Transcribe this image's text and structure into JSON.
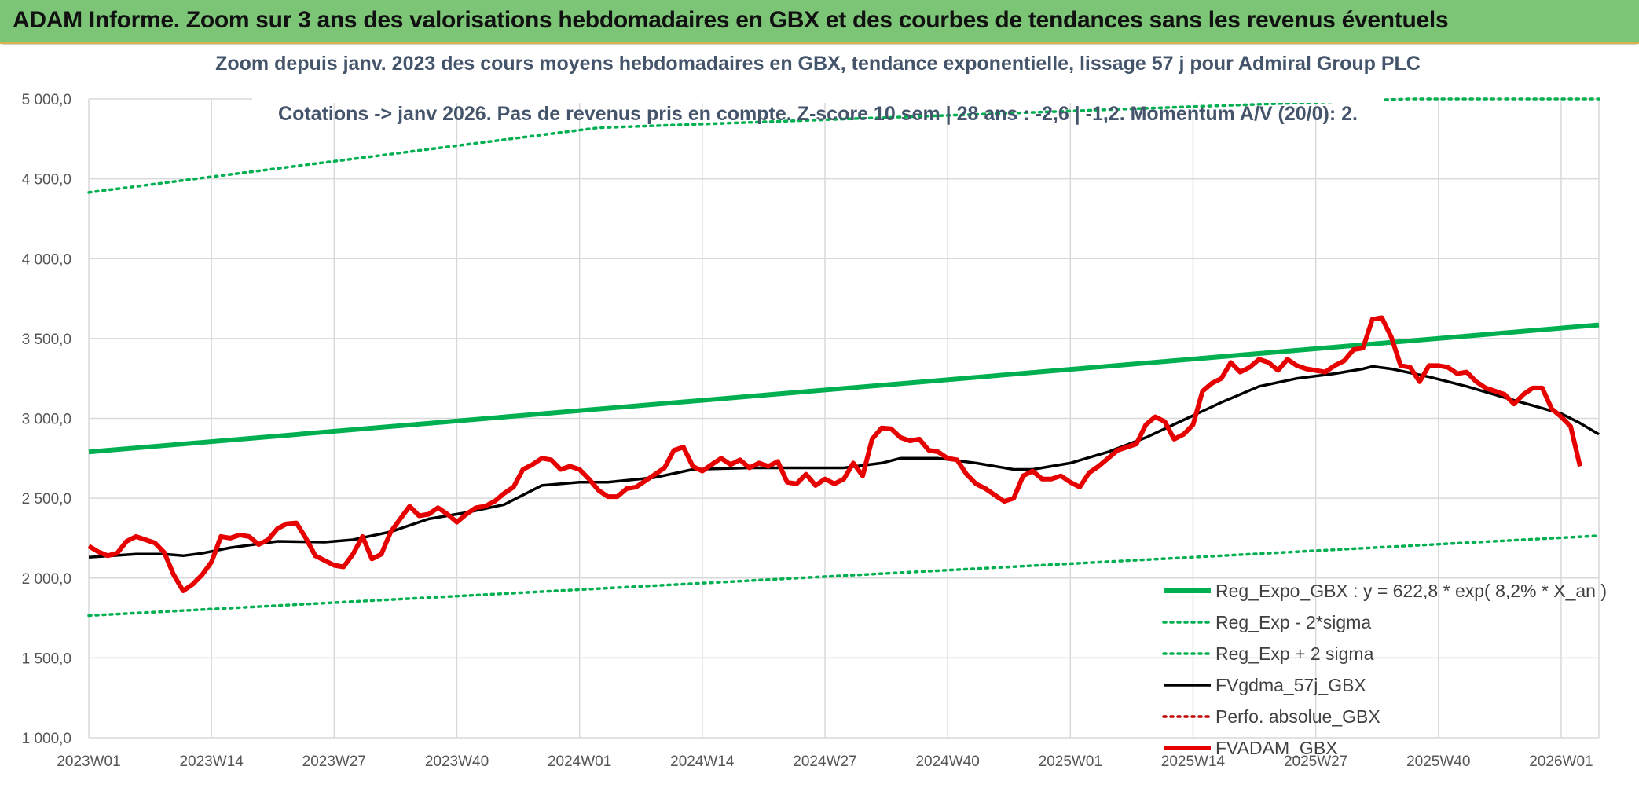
{
  "page": {
    "banner_title": "ADAM Informe. Zoom sur 3 ans des valorisations hebdomadaires en GBX et des courbes de tendances sans les revenus éventuels"
  },
  "chart_data": {
    "type": "line",
    "title": "Zoom depuis janv. 2023 des cours moyens hebdomadaires en GBX, tendance exponentielle, lissage 57 j pour Admiral Group PLC",
    "subtitle": "Cotations -> janv 2026. Pas de revenus pris en compte. Z-score 10 sem | 28 ans : -2,6 | -1,2. Momentum A/V (20/0): 2.",
    "xlabel": "",
    "ylabel": "",
    "ylim": [
      1000,
      5000
    ],
    "y_ticks": [
      1000,
      1500,
      2000,
      2500,
      3000,
      3500,
      4000,
      4500,
      5000
    ],
    "y_tick_labels": [
      "1 000,0",
      "1 500,0",
      "2 000,0",
      "2 500,0",
      "3 000,0",
      "3 500,0",
      "4 000,0",
      "4 500,0",
      "5 000,0"
    ],
    "x_ticks": [
      0,
      13,
      26,
      39,
      52,
      65,
      78,
      91,
      104,
      117,
      130,
      143,
      156
    ],
    "x_tick_labels": [
      "2023W01",
      "2023W14",
      "2023W27",
      "2023W40",
      "2024W01",
      "2024W14",
      "2024W27",
      "2024W40",
      "2025W01",
      "2025W14",
      "2025W27",
      "2025W40",
      "2026W01"
    ],
    "x_max": 160,
    "grid": true,
    "legend_position": "bottom-right",
    "colors": {
      "trend": "#00b050",
      "band": "#00b050",
      "smooth": "#000000",
      "perf": "#c00000",
      "price": "#e60000",
      "grid": "#d9d9d9"
    },
    "series": [
      {
        "name": "Reg_Expo_GBX : y = 622,8 * exp( 8,2% * X_an )",
        "style": "solid-thick",
        "color": "#00b050",
        "points": [
          [
            0,
            2790
          ],
          [
            160,
            3585
          ]
        ]
      },
      {
        "name": "Reg_Exp - 2*sigma",
        "style": "dotted",
        "color": "#00b050",
        "points": [
          [
            0,
            1765
          ],
          [
            160,
            2265
          ]
        ]
      },
      {
        "name": "Reg_Exp + 2 sigma",
        "style": "dotted",
        "color": "#00b050",
        "points": [
          [
            0,
            4415
          ],
          [
            54,
            4820
          ],
          [
            140,
            5000
          ],
          [
            160,
            5000
          ]
        ]
      },
      {
        "name": "FVgdma_57j_GBX",
        "style": "solid",
        "color": "#000000",
        "points": [
          [
            0,
            2130
          ],
          [
            5,
            2150
          ],
          [
            8,
            2150
          ],
          [
            10,
            2140
          ],
          [
            12,
            2155
          ],
          [
            15,
            2190
          ],
          [
            20,
            2230
          ],
          [
            25,
            2225
          ],
          [
            28,
            2240
          ],
          [
            32,
            2290
          ],
          [
            36,
            2370
          ],
          [
            40,
            2410
          ],
          [
            44,
            2460
          ],
          [
            48,
            2580
          ],
          [
            52,
            2600
          ],
          [
            55,
            2600
          ],
          [
            60,
            2630
          ],
          [
            64,
            2680
          ],
          [
            70,
            2690
          ],
          [
            75,
            2690
          ],
          [
            80,
            2690
          ],
          [
            84,
            2720
          ],
          [
            86,
            2750
          ],
          [
            90,
            2750
          ],
          [
            94,
            2720
          ],
          [
            98,
            2680
          ],
          [
            100,
            2680
          ],
          [
            104,
            2720
          ],
          [
            108,
            2790
          ],
          [
            112,
            2880
          ],
          [
            116,
            2990
          ],
          [
            120,
            3100
          ],
          [
            124,
            3200
          ],
          [
            128,
            3250
          ],
          [
            132,
            3280
          ],
          [
            135,
            3310
          ],
          [
            136,
            3325
          ],
          [
            138,
            3310
          ],
          [
            142,
            3260
          ],
          [
            146,
            3200
          ],
          [
            150,
            3130
          ],
          [
            153,
            3080
          ],
          [
            156,
            3030
          ],
          [
            158,
            2970
          ],
          [
            160,
            2900
          ]
        ]
      },
      {
        "name": "Perfo. absolue_GBX",
        "style": "dotted",
        "color": "#c00000",
        "points": []
      },
      {
        "name": "FVADAM_GBX",
        "style": "solid-thick",
        "color": "#e60000",
        "points": [
          [
            0,
            2200
          ],
          [
            1,
            2165
          ],
          [
            2,
            2140
          ],
          [
            3,
            2155
          ],
          [
            4,
            2230
          ],
          [
            5,
            2260
          ],
          [
            6,
            2240
          ],
          [
            7,
            2220
          ],
          [
            8,
            2160
          ],
          [
            9,
            2020
          ],
          [
            10,
            1920
          ],
          [
            11,
            1960
          ],
          [
            12,
            2020
          ],
          [
            13,
            2100
          ],
          [
            14,
            2260
          ],
          [
            15,
            2250
          ],
          [
            16,
            2270
          ],
          [
            17,
            2260
          ],
          [
            18,
            2210
          ],
          [
            19,
            2240
          ],
          [
            20,
            2310
          ],
          [
            21,
            2340
          ],
          [
            22,
            2345
          ],
          [
            23,
            2250
          ],
          [
            24,
            2140
          ],
          [
            25,
            2110
          ],
          [
            26,
            2080
          ],
          [
            27,
            2070
          ],
          [
            28,
            2150
          ],
          [
            29,
            2260
          ],
          [
            30,
            2120
          ],
          [
            31,
            2150
          ],
          [
            32,
            2290
          ],
          [
            33,
            2370
          ],
          [
            34,
            2450
          ],
          [
            35,
            2390
          ],
          [
            36,
            2400
          ],
          [
            37,
            2440
          ],
          [
            38,
            2400
          ],
          [
            39,
            2350
          ],
          [
            40,
            2400
          ],
          [
            41,
            2440
          ],
          [
            42,
            2450
          ],
          [
            43,
            2480
          ],
          [
            44,
            2530
          ],
          [
            45,
            2570
          ],
          [
            46,
            2680
          ],
          [
            47,
            2710
          ],
          [
            48,
            2750
          ],
          [
            49,
            2740
          ],
          [
            50,
            2680
          ],
          [
            51,
            2700
          ],
          [
            52,
            2680
          ],
          [
            53,
            2620
          ],
          [
            54,
            2550
          ],
          [
            55,
            2510
          ],
          [
            56,
            2510
          ],
          [
            57,
            2560
          ],
          [
            58,
            2570
          ],
          [
            59,
            2610
          ],
          [
            60,
            2650
          ],
          [
            61,
            2690
          ],
          [
            62,
            2800
          ],
          [
            63,
            2820
          ],
          [
            64,
            2700
          ],
          [
            65,
            2670
          ],
          [
            66,
            2710
          ],
          [
            67,
            2750
          ],
          [
            68,
            2710
          ],
          [
            69,
            2740
          ],
          [
            70,
            2690
          ],
          [
            71,
            2720
          ],
          [
            72,
            2700
          ],
          [
            73,
            2730
          ],
          [
            74,
            2600
          ],
          [
            75,
            2590
          ],
          [
            76,
            2650
          ],
          [
            77,
            2580
          ],
          [
            78,
            2620
          ],
          [
            79,
            2590
          ],
          [
            80,
            2620
          ],
          [
            81,
            2720
          ],
          [
            82,
            2640
          ],
          [
            83,
            2870
          ],
          [
            84,
            2940
          ],
          [
            85,
            2935
          ],
          [
            86,
            2880
          ],
          [
            87,
            2860
          ],
          [
            88,
            2870
          ],
          [
            89,
            2800
          ],
          [
            90,
            2790
          ],
          [
            91,
            2750
          ],
          [
            92,
            2740
          ],
          [
            93,
            2650
          ],
          [
            94,
            2590
          ],
          [
            95,
            2560
          ],
          [
            96,
            2520
          ],
          [
            97,
            2480
          ],
          [
            98,
            2500
          ],
          [
            99,
            2640
          ],
          [
            100,
            2670
          ],
          [
            101,
            2620
          ],
          [
            102,
            2620
          ],
          [
            103,
            2640
          ],
          [
            104,
            2600
          ],
          [
            105,
            2570
          ],
          [
            106,
            2660
          ],
          [
            107,
            2700
          ],
          [
            108,
            2750
          ],
          [
            109,
            2800
          ],
          [
            110,
            2820
          ],
          [
            111,
            2840
          ],
          [
            112,
            2960
          ],
          [
            113,
            3010
          ],
          [
            114,
            2980
          ],
          [
            115,
            2870
          ],
          [
            116,
            2900
          ],
          [
            117,
            2960
          ],
          [
            118,
            3170
          ],
          [
            119,
            3220
          ],
          [
            120,
            3250
          ],
          [
            121,
            3350
          ],
          [
            122,
            3290
          ],
          [
            123,
            3320
          ],
          [
            124,
            3370
          ],
          [
            125,
            3350
          ],
          [
            126,
            3300
          ],
          [
            127,
            3370
          ],
          [
            128,
            3330
          ],
          [
            129,
            3310
          ],
          [
            130,
            3300
          ],
          [
            131,
            3290
          ],
          [
            132,
            3330
          ],
          [
            133,
            3360
          ],
          [
            134,
            3430
          ],
          [
            135,
            3440
          ],
          [
            136,
            3620
          ],
          [
            137,
            3630
          ],
          [
            138,
            3510
          ],
          [
            139,
            3330
          ],
          [
            140,
            3320
          ],
          [
            141,
            3230
          ],
          [
            142,
            3330
          ],
          [
            143,
            3330
          ],
          [
            144,
            3320
          ],
          [
            145,
            3280
          ],
          [
            146,
            3290
          ],
          [
            147,
            3230
          ],
          [
            148,
            3190
          ],
          [
            149,
            3170
          ],
          [
            150,
            3150
          ],
          [
            151,
            3090
          ],
          [
            152,
            3150
          ],
          [
            153,
            3190
          ],
          [
            154,
            3190
          ],
          [
            155,
            3060
          ],
          [
            156,
            3010
          ],
          [
            157,
            2950
          ],
          [
            158,
            2700
          ]
        ]
      }
    ]
  }
}
